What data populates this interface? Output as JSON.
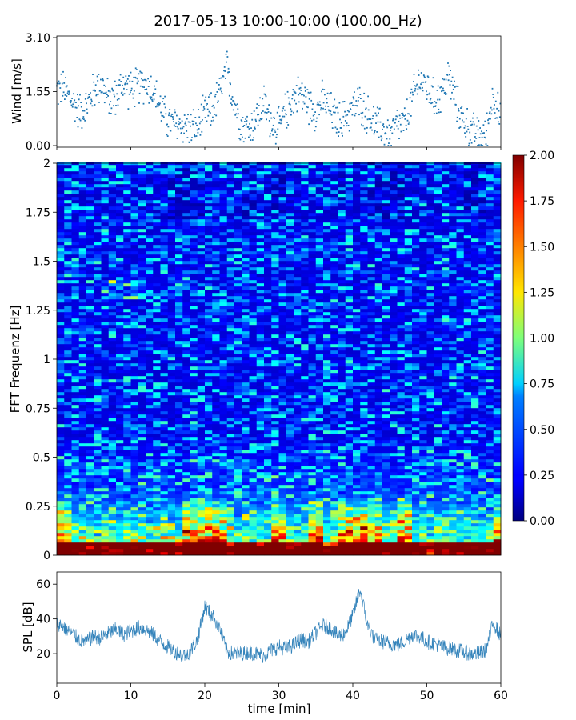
{
  "figure": {
    "title": "2017-05-13 10:00-10:00 (100.00_Hz)"
  },
  "chart_data": [
    {
      "type": "scatter",
      "panel": "wind",
      "ylabel": "Wind [m/s]",
      "xlim": [
        0,
        60
      ],
      "ylim": [
        0,
        3.1
      ],
      "yticks": [
        0.0,
        1.55,
        3.1
      ],
      "ytick_labels": [
        "0.00",
        "1.55",
        "3.10"
      ],
      "xticks": [
        0,
        10,
        20,
        30,
        40,
        50,
        60
      ],
      "series": [
        {
          "color": "#1f77b4",
          "trend": {
            "x": [
              0,
              1,
              2,
              3,
              4,
              5,
              6,
              7,
              8,
              9,
              10,
              11,
              12,
              13,
              14,
              15,
              16,
              17,
              18,
              19,
              20,
              21,
              22,
              23,
              24,
              25,
              26,
              27,
              28,
              29,
              30,
              31,
              32,
              33,
              34,
              35,
              36,
              37,
              38,
              39,
              40,
              41,
              42,
              43,
              44,
              45,
              46,
              47,
              48,
              49,
              50,
              51,
              52,
              53,
              54,
              55,
              56,
              57,
              58,
              59,
              60
            ],
            "y": [
              1.6,
              1.6,
              1.3,
              1.0,
              1.1,
              1.6,
              1.8,
              1.3,
              1.4,
              1.8,
              1.6,
              1.7,
              1.8,
              1.6,
              1.1,
              0.7,
              0.6,
              0.6,
              0.5,
              0.5,
              0.9,
              1.0,
              1.5,
              2.2,
              1.2,
              0.6,
              0.5,
              0.8,
              1.2,
              0.7,
              0.5,
              1.0,
              1.4,
              1.5,
              1.2,
              1.0,
              1.3,
              1.0,
              0.7,
              0.8,
              1.1,
              1.2,
              0.9,
              0.6,
              0.5,
              0.3,
              0.6,
              0.6,
              1.3,
              1.9,
              1.7,
              1.3,
              1.5,
              2.0,
              1.2,
              0.7,
              0.4,
              0.3,
              0.3,
              1.5,
              0.6
            ]
          }
        }
      ]
    },
    {
      "type": "heatmap",
      "panel": "spectrogram",
      "ylabel": "FFT Frequenz [Hz]",
      "xlim": [
        0,
        60
      ],
      "ylim": [
        0,
        2
      ],
      "yticks": [
        0,
        0.25,
        0.5,
        0.75,
        1,
        1.25,
        1.5,
        1.75,
        2
      ],
      "ytick_labels": [
        "0",
        "0.25",
        "0.5",
        "0.75",
        "1",
        "1.25",
        "1.5",
        "1.75",
        "2"
      ],
      "colormap": "jet",
      "colorbar": {
        "range": [
          0,
          2
        ],
        "ticks": [
          0.0,
          0.25,
          0.5,
          0.75,
          1.0,
          1.25,
          1.5,
          1.75,
          2.0
        ],
        "tick_labels": [
          "0.00",
          "0.25",
          "0.50",
          "0.75",
          "1.00",
          "1.25",
          "1.50",
          "1.75",
          "2.00"
        ]
      },
      "background_level": 0.15,
      "low_frequency_band_hz": [
        0,
        0.3
      ],
      "high_activity_minutes": [
        [
          0,
          2
        ],
        [
          17,
          23
        ],
        [
          29,
          31
        ],
        [
          34,
          36
        ],
        [
          38,
          44
        ],
        [
          46,
          48
        ],
        [
          59,
          60
        ]
      ]
    },
    {
      "type": "line",
      "panel": "spl",
      "ylabel": "SPL [dB]",
      "xlabel": "time [min]",
      "xlim": [
        0,
        60
      ],
      "ylim": [
        3,
        67
      ],
      "yticks": [
        20,
        40,
        60
      ],
      "ytick_labels": [
        "20",
        "40",
        "60"
      ],
      "xticks": [
        0,
        10,
        20,
        30,
        40,
        50,
        60
      ],
      "xtick_labels": [
        "0",
        "10",
        "20",
        "30",
        "40",
        "50",
        "60"
      ],
      "series": [
        {
          "color": "#1f77b4",
          "x": [
            0,
            1,
            2,
            3,
            4,
            5,
            6,
            7,
            8,
            9,
            10,
            11,
            12,
            13,
            14,
            15,
            16,
            17,
            18,
            19,
            20,
            21,
            22,
            23,
            24,
            25,
            26,
            27,
            28,
            29,
            30,
            31,
            32,
            33,
            34,
            35,
            36,
            37,
            38,
            39,
            40,
            41,
            42,
            43,
            44,
            45,
            46,
            47,
            48,
            49,
            50,
            51,
            52,
            53,
            54,
            55,
            56,
            57,
            58,
            59,
            60
          ],
          "y": [
            38,
            35,
            32,
            28,
            27,
            30,
            29,
            32,
            34,
            31,
            33,
            35,
            34,
            31,
            27,
            24,
            21,
            19,
            21,
            28,
            47,
            42,
            35,
            21,
            20,
            20,
            21,
            20,
            19,
            22,
            24,
            23,
            25,
            28,
            27,
            32,
            36,
            35,
            30,
            32,
            42,
            57,
            36,
            28,
            27,
            26,
            25,
            27,
            31,
            30,
            27,
            26,
            24,
            23,
            22,
            21,
            20,
            20,
            22,
            38,
            30
          ]
        }
      ]
    }
  ]
}
